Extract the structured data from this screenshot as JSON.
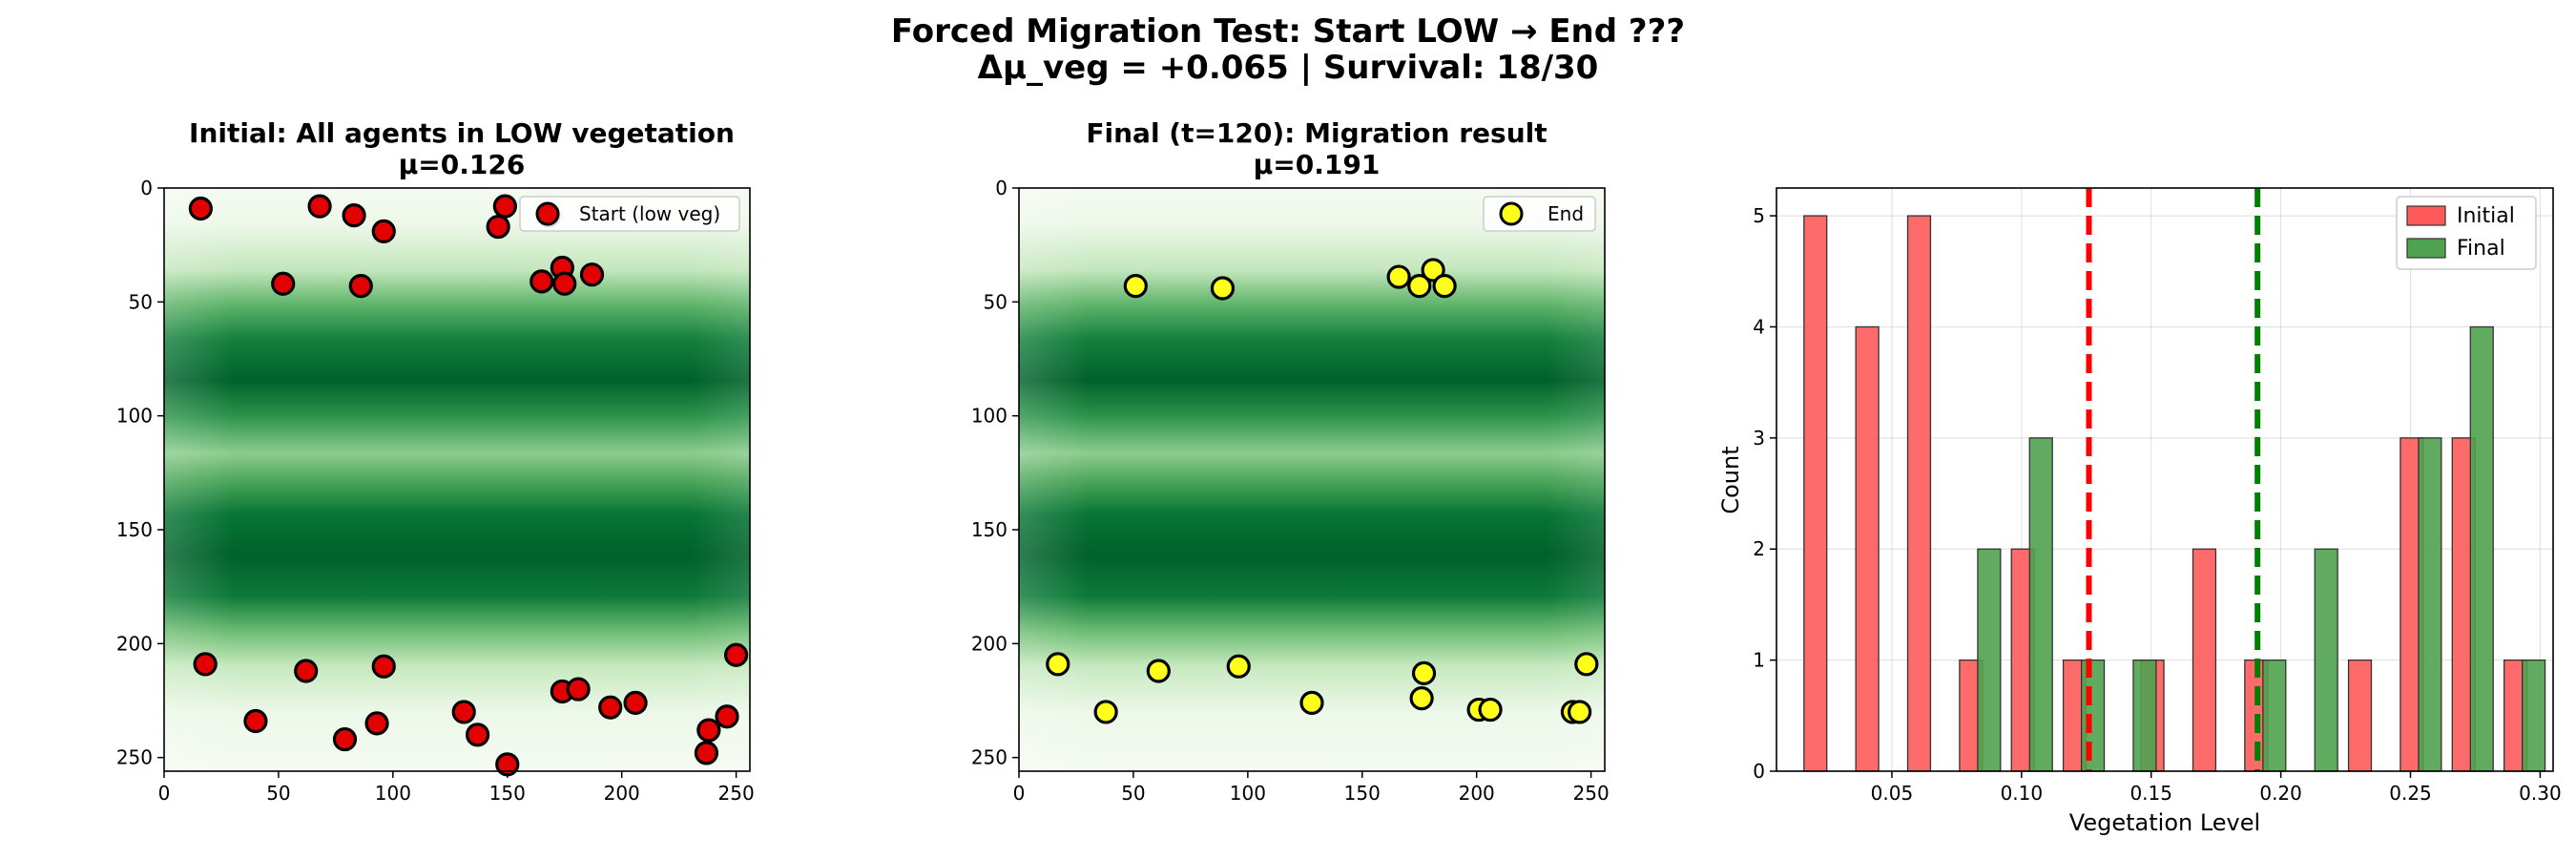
{
  "suptitle": {
    "line1": "Forced Migration Test: Start LOW → End ???",
    "line2": "Δμ_veg = +0.065 | Survival: 18/30"
  },
  "colors": {
    "start_marker": "#e30000",
    "end_marker": "#ffff1a",
    "initial_bar": "#ff5a5a",
    "final_bar": "#4fa24f",
    "initial_mean_line": "#ff0000",
    "final_mean_line": "#008000",
    "veg_dark": "#00612a",
    "veg_light": "#f4fbf1"
  },
  "chart_data": [
    {
      "type": "scatter",
      "title": "Initial: All agents in LOW vegetation",
      "subtitle": "μ=0.126",
      "background": "vegetation heatmap (Greens)",
      "xlim": [
        0,
        256
      ],
      "ylim": [
        256,
        0
      ],
      "xticks": [
        "0",
        "50",
        "100",
        "150",
        "200",
        "250"
      ],
      "yticks": [
        "0",
        "50",
        "100",
        "150",
        "200",
        "250"
      ],
      "legend": {
        "label": "Start (low veg)",
        "position": "upper right"
      },
      "points": [
        [
          16,
          9
        ],
        [
          68,
          8
        ],
        [
          83,
          12
        ],
        [
          96,
          19
        ],
        [
          52,
          42
        ],
        [
          86,
          43
        ],
        [
          149,
          8
        ],
        [
          146,
          17
        ],
        [
          168,
          12
        ],
        [
          174,
          35
        ],
        [
          165,
          41
        ],
        [
          175,
          42
        ],
        [
          187,
          38
        ],
        [
          18,
          209
        ],
        [
          62,
          212
        ],
        [
          96,
          210
        ],
        [
          40,
          234
        ],
        [
          79,
          242
        ],
        [
          93,
          235
        ],
        [
          131,
          230
        ],
        [
          137,
          240
        ],
        [
          150,
          253
        ],
        [
          174,
          221
        ],
        [
          181,
          220
        ],
        [
          195,
          228
        ],
        [
          206,
          226
        ],
        [
          238,
          238
        ],
        [
          246,
          232
        ],
        [
          250,
          205
        ],
        [
          237,
          248
        ]
      ]
    },
    {
      "type": "scatter",
      "title": "Final (t=120): Migration result",
      "subtitle": "μ=0.191",
      "background": "vegetation heatmap (Greens)",
      "xlim": [
        0,
        256
      ],
      "ylim": [
        256,
        0
      ],
      "xticks": [
        "0",
        "50",
        "100",
        "150",
        "200",
        "250"
      ],
      "yticks": [
        "0",
        "50",
        "100",
        "150",
        "200",
        "250"
      ],
      "legend": {
        "label": "End",
        "position": "upper right"
      },
      "points": [
        [
          51,
          43
        ],
        [
          89,
          44
        ],
        [
          166,
          39
        ],
        [
          175,
          43
        ],
        [
          181,
          36
        ],
        [
          186,
          43
        ],
        [
          17,
          209
        ],
        [
          38,
          230
        ],
        [
          61,
          212
        ],
        [
          96,
          210
        ],
        [
          128,
          226
        ],
        [
          176,
          224
        ],
        [
          177,
          213
        ],
        [
          201,
          229
        ],
        [
          206,
          229
        ],
        [
          242,
          230
        ],
        [
          245,
          230
        ],
        [
          248,
          209
        ]
      ]
    },
    {
      "type": "bar",
      "title": "",
      "xlabel": "Vegetation Level",
      "ylabel": "Count",
      "xlim": [
        0.0055,
        0.305
      ],
      "ylim": [
        0,
        5.25
      ],
      "xticks": [
        "0.05",
        "0.10",
        "0.15",
        "0.20",
        "0.25",
        "0.30"
      ],
      "yticks": [
        "0",
        "1",
        "2",
        "3",
        "4",
        "5"
      ],
      "grid": true,
      "legend_position": "upper right",
      "series": [
        {
          "name": "Initial",
          "bars": [
            [
              0.016,
              5
            ],
            [
              0.036,
              4
            ],
            [
              0.056,
              5
            ],
            [
              0.077,
              1
            ],
            [
              0.097,
              2
            ],
            [
              0.117,
              1
            ],
            [
              0.117,
              0
            ],
            [
              0.158,
              1
            ],
            [
              0.178,
              2
            ],
            [
              0.188,
              1
            ],
            [
              0.229,
              1
            ],
            [
              0.249,
              3
            ],
            [
              0.269,
              3
            ],
            [
              0.289,
              1
            ]
          ],
          "centers": [
            0.0205,
            0.0405,
            0.0605,
            0.0805,
            0.1005,
            0.1205,
            0.1505,
            0.1705,
            0.1905,
            0.2305,
            0.2505,
            0.2705,
            0.2905
          ],
          "counts": [
            5,
            4,
            5,
            1,
            2,
            1,
            1,
            2,
            1,
            1,
            3,
            3,
            1
          ]
        },
        {
          "name": "Final",
          "centers": [
            0.0875,
            0.1075,
            0.1275,
            0.1475,
            0.1975,
            0.2175,
            0.2575,
            0.2775,
            0.2975
          ],
          "counts": [
            2,
            3,
            1,
            1,
            1,
            2,
            3,
            4,
            1
          ]
        }
      ],
      "mean_lines": [
        {
          "x": 0.126,
          "series": "Initial"
        },
        {
          "x": 0.191,
          "series": "Final"
        }
      ]
    }
  ]
}
